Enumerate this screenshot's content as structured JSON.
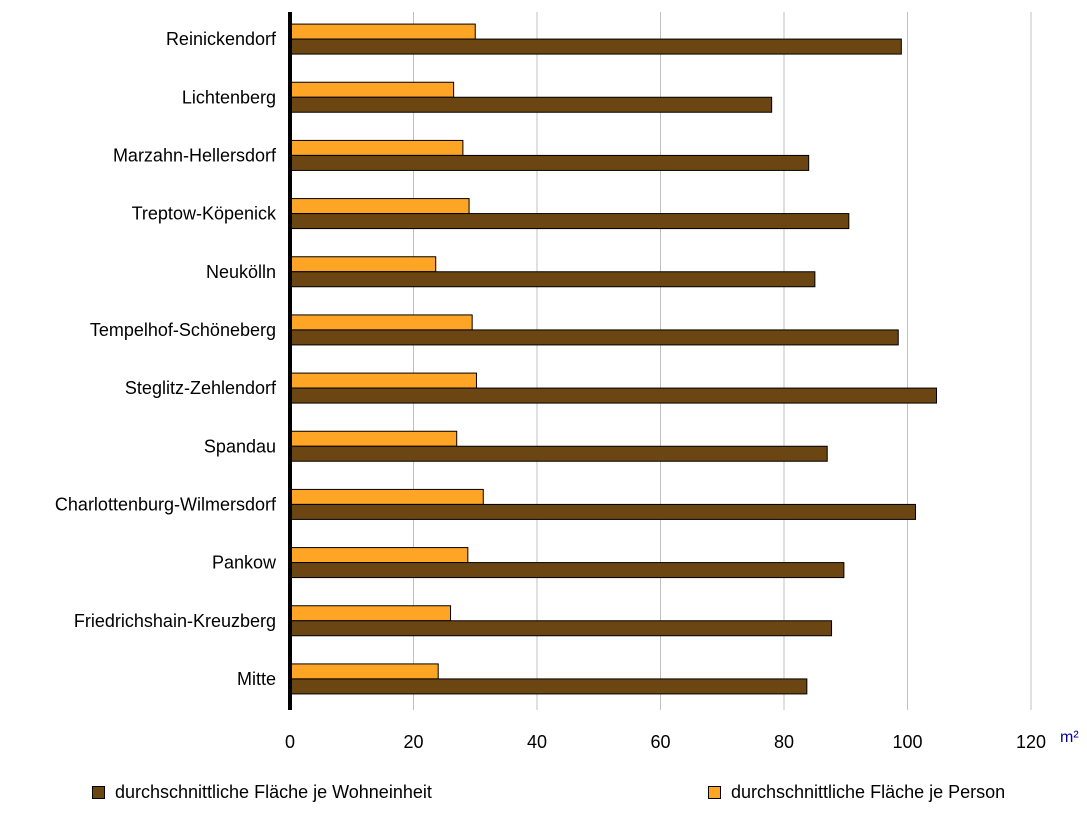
{
  "chart_data": {
    "type": "bar",
    "orientation": "horizontal",
    "title": "",
    "xlabel": "",
    "ylabel": "",
    "unit": "m²",
    "xlim": [
      0,
      120
    ],
    "x_ticks": [
      0,
      20,
      40,
      60,
      80,
      100,
      120
    ],
    "grid": "vertical",
    "legend_position": "bottom",
    "categories": [
      "Reinickendorf",
      "Lichtenberg",
      "Marzahn-Hellersdorf",
      "Treptow-Köpenick",
      "Neukölln",
      "Tempelhof-Schöneberg",
      "Steglitz-Zehlendorf",
      "Spandau",
      "Charlottenburg-Wilmersdorf",
      "Pankow",
      "Friedrichshain-Kreuzberg",
      "Mitte"
    ],
    "series": [
      {
        "name": "durchschnittliche Fläche je Person",
        "color": "#FFA526",
        "values": [
          30.0,
          26.5,
          28.0,
          29.0,
          23.6,
          29.5,
          30.2,
          27.0,
          31.3,
          28.8,
          26.0,
          24.0
        ]
      },
      {
        "name": "durchschnittliche Fläche je Wohneinheit",
        "color": "#6B4612",
        "values": [
          99.0,
          78.0,
          84.0,
          90.5,
          85.0,
          98.5,
          104.7,
          87.0,
          101.3,
          89.7,
          87.7,
          83.7
        ]
      }
    ],
    "legend_order": [
      1,
      0
    ]
  },
  "colors": {
    "axis": "#000000",
    "grid": "#C0C0C0",
    "unit": "#000099",
    "bar_edge": "#000000"
  }
}
